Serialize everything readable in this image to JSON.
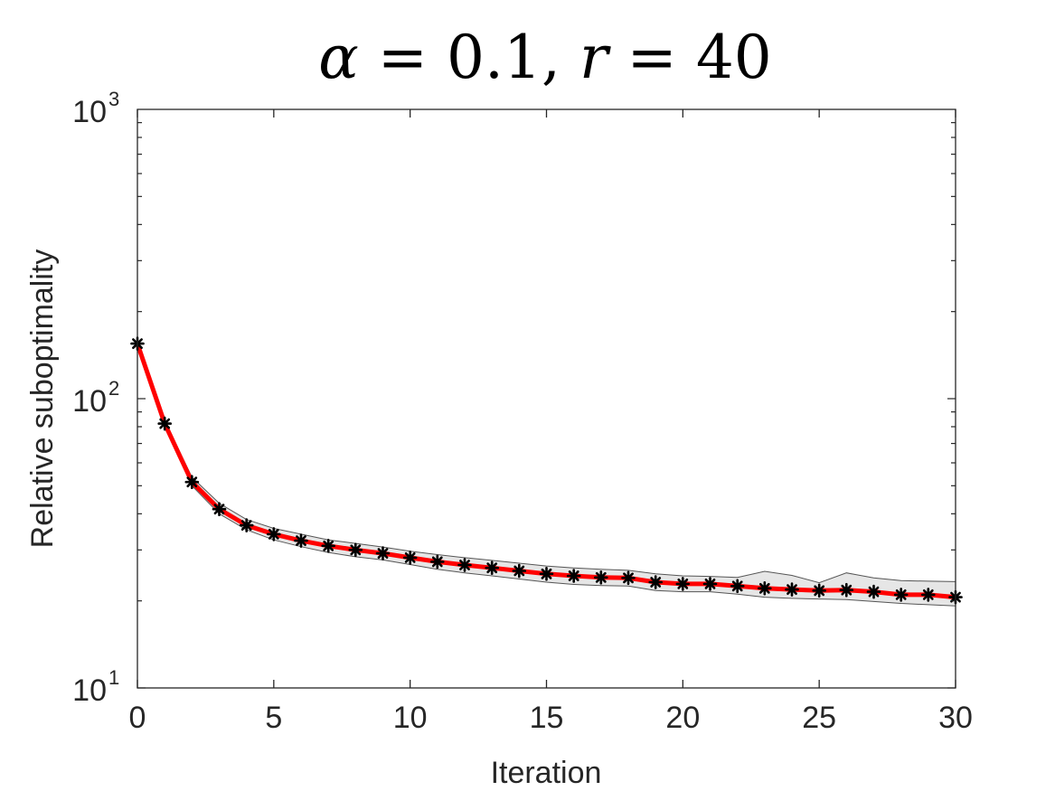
{
  "chart_data": {
    "type": "line",
    "title": {
      "alpha_symbol": "α",
      "alpha_value": "0.1",
      "r_symbol": "r",
      "r_value": "40"
    },
    "xlabel": "Iteration",
    "ylabel": "Relative suboptimality",
    "xlim": [
      0,
      30
    ],
    "ylim": [
      10,
      1000
    ],
    "yscale": "log",
    "grid": false,
    "x_ticks": [
      0,
      5,
      10,
      15,
      20,
      25,
      30
    ],
    "x_tick_labels": [
      "0",
      "5",
      "10",
      "15",
      "20",
      "25",
      "30"
    ],
    "y_ticks": [
      10,
      100,
      1000
    ],
    "y_tick_labels": [
      {
        "base": "10",
        "exp": "1"
      },
      {
        "base": "10",
        "exp": "2"
      },
      {
        "base": "10",
        "exp": "3"
      }
    ],
    "x": [
      0,
      1,
      2,
      3,
      4,
      5,
      6,
      7,
      8,
      9,
      10,
      11,
      12,
      13,
      14,
      15,
      16,
      17,
      18,
      19,
      20,
      21,
      22,
      23,
      24,
      25,
      26,
      27,
      28,
      29,
      30
    ],
    "series": [
      {
        "values": [
          155,
          82,
          51.5,
          41.5,
          36.5,
          34,
          32.3,
          31,
          30,
          29.2,
          28.2,
          27.3,
          26.6,
          26,
          25.4,
          24.8,
          24.4,
          24.1,
          24,
          23.2,
          22.9,
          22.9,
          22.5,
          22.1,
          21.9,
          21.7,
          21.8,
          21.5,
          21,
          21,
          20.6
        ],
        "upper": [
          157,
          84,
          53.5,
          43.5,
          38.2,
          35.6,
          34,
          32.5,
          31.6,
          30.7,
          29.7,
          28.9,
          28.2,
          27.6,
          27,
          26.4,
          26,
          25.7,
          25.5,
          24.8,
          24.4,
          24.3,
          24.1,
          25.3,
          24.5,
          23.1,
          25,
          24,
          23.5,
          23.4,
          23.3
        ],
        "lower": [
          153,
          80.5,
          50,
          40,
          35.2,
          32.5,
          30.8,
          29.4,
          28.4,
          27.7,
          26.7,
          25.7,
          25,
          24.4,
          23.8,
          23.2,
          22.8,
          22.6,
          22.5,
          21.7,
          21.5,
          21.5,
          21.1,
          20.6,
          20.4,
          20.3,
          20.2,
          19.9,
          19.6,
          19.4,
          19.2
        ],
        "line_color": "#ff0000",
        "marker_color": "#000000",
        "band_fill": "#e6e6e6",
        "band_stroke": "#555555"
      }
    ]
  }
}
